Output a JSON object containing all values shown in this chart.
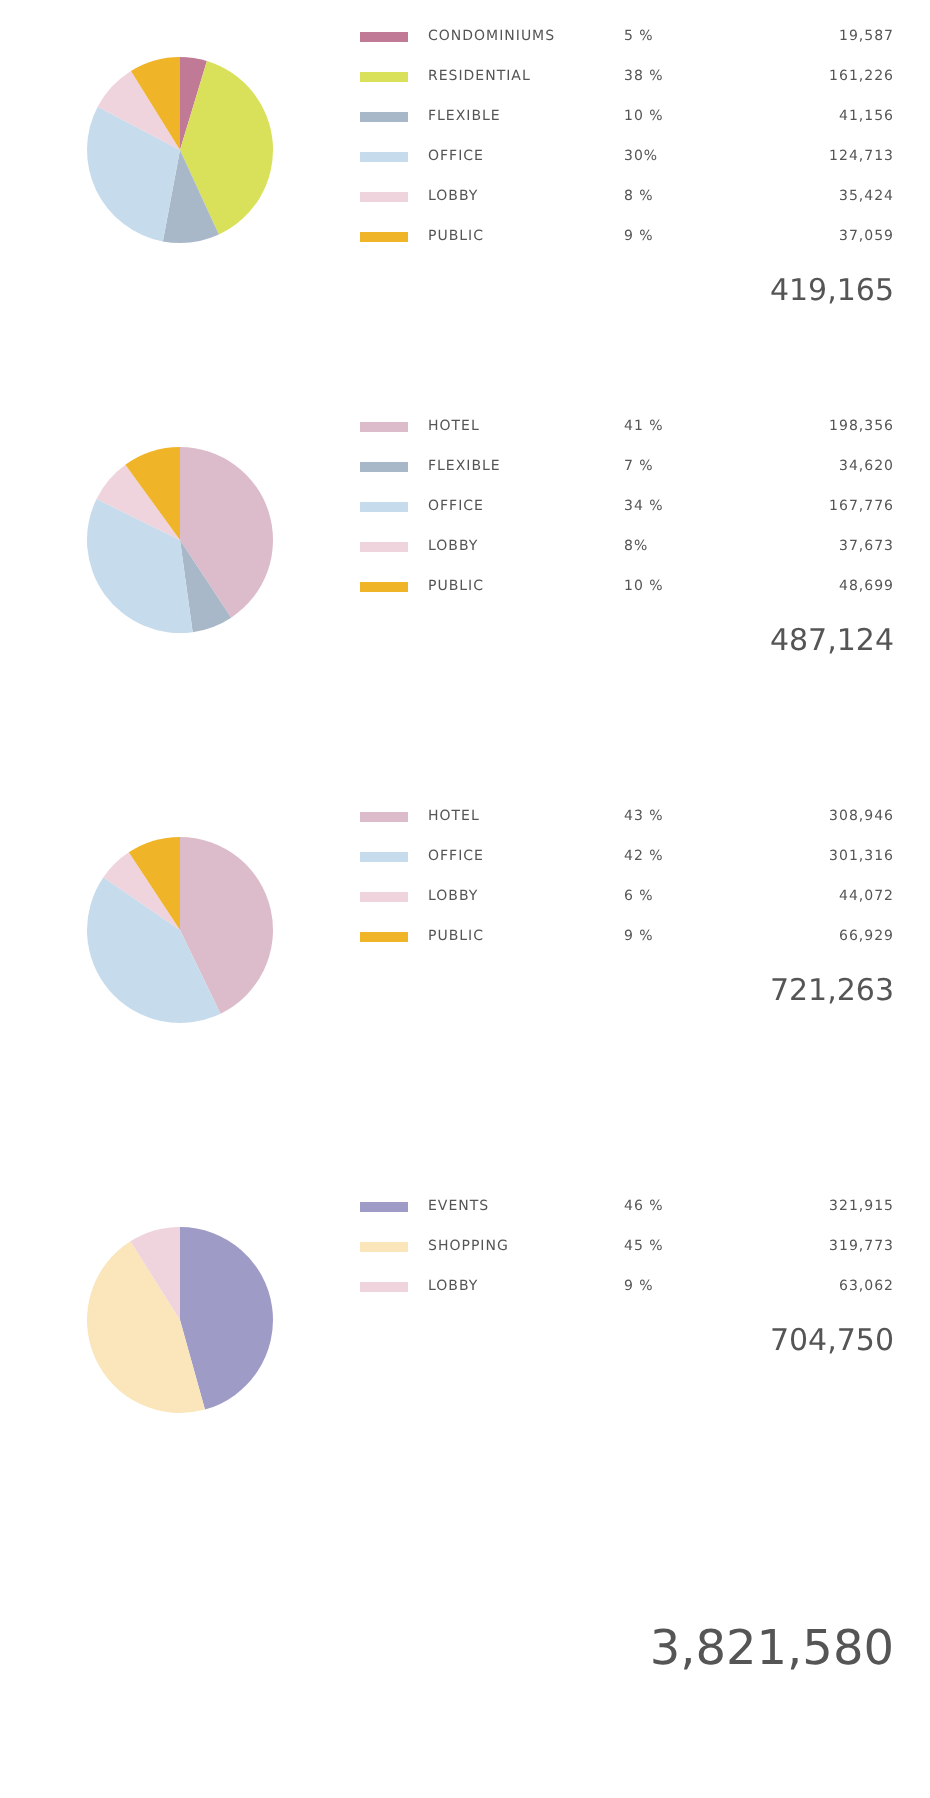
{
  "chart_data": [
    {
      "type": "pie",
      "categories": [
        "CONDOMINIUMS",
        "RESIDENTIAL",
        "FLEXIBLE",
        "OFFICE",
        "LOBBY",
        "PUBLIC"
      ],
      "values": [
        19587,
        161226,
        41156,
        124713,
        35424,
        37059
      ],
      "colors": [
        "#c07a96",
        "#d9e05a",
        "#a9b8c8",
        "#c6dbec",
        "#efd3dd",
        "#f0b429"
      ],
      "value_labels": [
        "19,587",
        "161,226",
        "41,156",
        "124,713",
        "35,424",
        "37,059"
      ],
      "legend": "right",
      "annotations": [
        {
          "text": "5 %",
          "x": "CONDOMINIUMS"
        },
        {
          "text": "38 %",
          "x": "RESIDENTIAL"
        },
        {
          "text": "10 %",
          "x": "FLEXIBLE"
        },
        {
          "text": "30%",
          "x": "OFFICE"
        },
        {
          "text": "8 %",
          "x": "LOBBY"
        },
        {
          "text": "9 %",
          "x": "PUBLIC"
        },
        "419,165"
      ]
    },
    {
      "type": "pie",
      "categories": [
        "HOTEL",
        "FLEXIBLE",
        "OFFICE",
        "LOBBY",
        "PUBLIC"
      ],
      "values": [
        198356,
        34620,
        167776,
        37673,
        48699
      ],
      "colors": [
        "#dcbccb",
        "#a9b8c8",
        "#c6dbec",
        "#efd3dd",
        "#f0b429"
      ],
      "value_labels": [
        "198,356",
        "34,620",
        "167,776",
        "37,673",
        "48,699"
      ],
      "legend": "right",
      "annotations": [
        {
          "text": "41 %",
          "x": "HOTEL"
        },
        {
          "text": "7 %",
          "x": "FLEXIBLE"
        },
        {
          "text": "34 %",
          "x": "OFFICE"
        },
        {
          "text": "8%",
          "x": "LOBBY"
        },
        {
          "text": "10 %",
          "x": "PUBLIC"
        },
        "487,124"
      ]
    },
    {
      "type": "pie",
      "categories": [
        "HOTEL",
        "OFFICE",
        "LOBBY",
        "PUBLIC"
      ],
      "values": [
        308946,
        301316,
        44072,
        66929
      ],
      "colors": [
        "#dcbccb",
        "#c6dbec",
        "#efd3dd",
        "#f0b429"
      ],
      "value_labels": [
        "308,946",
        "301,316",
        "44,072",
        "66,929"
      ],
      "legend": "right",
      "annotations": [
        {
          "text": "43 %",
          "x": "HOTEL"
        },
        {
          "text": "42 %",
          "x": "OFFICE"
        },
        {
          "text": "6 %",
          "x": "LOBBY"
        },
        {
          "text": "9 %",
          "x": "PUBLIC"
        },
        "721,263"
      ]
    },
    {
      "type": "pie",
      "categories": [
        "EVENTS",
        "SHOPPING",
        "LOBBY"
      ],
      "values": [
        321915,
        319773,
        63062
      ],
      "colors": [
        "#9e9cc6",
        "#fbe6bb",
        "#efd3dd"
      ],
      "value_labels": [
        "321,915",
        "319,773",
        "63,062"
      ],
      "legend": "right",
      "annotations": [
        {
          "text": "46 %",
          "x": "EVENTS"
        },
        {
          "text": "45 %",
          "x": "SHOPPING"
        },
        {
          "text": "9 %",
          "x": "LOBBY"
        },
        "704,750",
        "3,821,580"
      ]
    }
  ]
}
